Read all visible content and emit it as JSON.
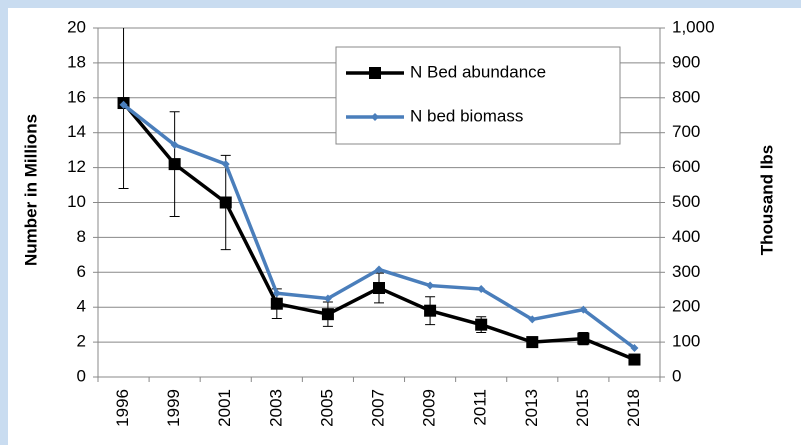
{
  "chart_data": {
    "type": "line",
    "categories": [
      "1996",
      "1999",
      "2001",
      "2003",
      "2005",
      "2007",
      "2009",
      "2011",
      "2013",
      "2015",
      "2018"
    ],
    "series": [
      {
        "name": "N Bed abundance",
        "color": "#000000",
        "values": [
          15.7,
          12.2,
          10.0,
          4.2,
          3.6,
          5.1,
          3.8,
          3.0,
          2.0,
          2.2,
          1.0
        ],
        "errors": [
          4.9,
          3.0,
          2.7,
          0.85,
          0.7,
          0.85,
          0.8,
          0.45,
          0.3,
          0.35,
          0.2
        ]
      },
      {
        "name": "N bed biomass",
        "color": "#4a7ebb",
        "axis": "y2",
        "values": [
          780,
          665,
          610,
          240,
          225,
          308,
          262,
          252,
          165,
          193,
          83
        ]
      }
    ],
    "ylabel": "Number in Millions",
    "y2label": "Thousand lbs",
    "ylim": [
      0,
      20
    ],
    "yticks": [
      0,
      2,
      4,
      6,
      8,
      10,
      12,
      14,
      16,
      18,
      20
    ],
    "y2lim": [
      0,
      1000
    ],
    "y2ticks": [
      0,
      100,
      200,
      300,
      400,
      500,
      600,
      700,
      800,
      900,
      {
        "value": 1000,
        "label": "1,000"
      }
    ],
    "grid": true
  }
}
